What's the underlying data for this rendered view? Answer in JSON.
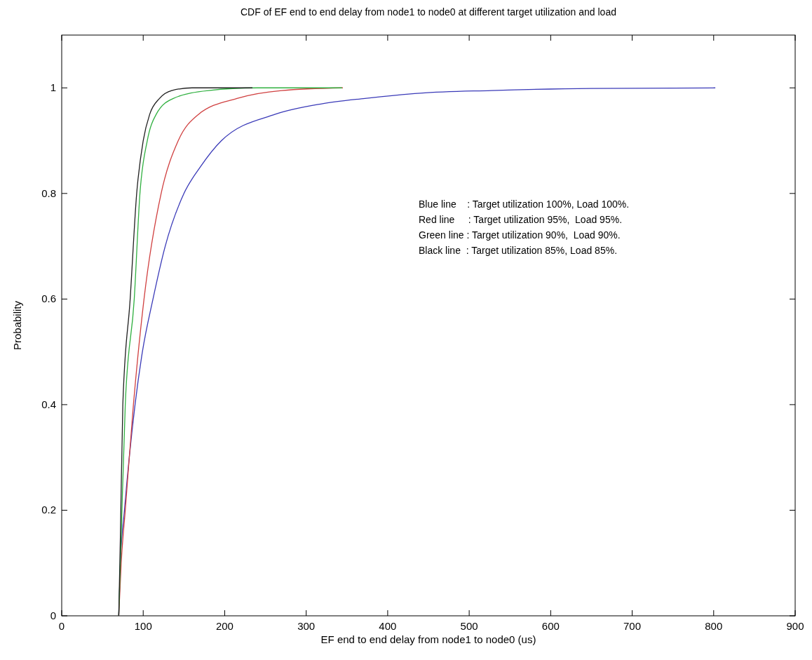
{
  "chart_data": {
    "type": "line",
    "title": "CDF of EF end to end delay from node1 to node0 at different target utilization and load",
    "xlabel": "EF end to end delay from node1 to node0 (us)",
    "ylabel": "Probability",
    "xlim": [
      0,
      900
    ],
    "xticks": [
      0,
      100,
      200,
      300,
      400,
      500,
      600,
      700,
      800,
      900
    ],
    "ylim": [
      0,
      1.1
    ],
    "yticks": [
      0,
      0.2,
      0.4,
      0.6,
      0.8,
      1
    ],
    "grid": false,
    "annotations": [
      "Blue line    : Target utilization 100%, Load 100%.",
      "Red line     : Target utilization 95%,  Load 95%.",
      "Green line : Target utilization 90%,  Load 90%.",
      "Black line  : Target utilization 85%, Load 85%."
    ],
    "series": [
      {
        "color": "#3a3ab8",
        "x": [
          70,
          72,
          77,
          90,
          99,
          112,
          127,
          150,
          170,
          196,
          262,
          320,
          372,
          440,
          527,
          650,
          802
        ],
        "values": [
          0,
          0.1,
          0.2,
          0.4,
          0.5,
          0.6,
          0.7,
          0.8,
          0.85,
          0.9,
          0.95,
          0.97,
          0.98,
          0.99,
          0.995,
          0.999,
          1
        ]
      },
      {
        "color": "#d04040",
        "x": [
          70,
          73,
          78,
          88,
          101,
          122,
          143,
          168,
          215,
          270,
          345
        ],
        "values": [
          0,
          0.1,
          0.2,
          0.4,
          0.6,
          0.8,
          0.9,
          0.95,
          0.98,
          0.995,
          1
        ]
      },
      {
        "color": "#30b040",
        "x": [
          70,
          73,
          78,
          89,
          96,
          105,
          116,
          137,
          180,
          240,
          344
        ],
        "values": [
          0,
          0.15,
          0.4,
          0.6,
          0.8,
          0.9,
          0.95,
          0.98,
          0.995,
          1,
          1
        ]
      },
      {
        "color": "#202020",
        "x": [
          70,
          72,
          75,
          84,
          92,
          100,
          108,
          120,
          135,
          160,
          234
        ],
        "values": [
          0,
          0.15,
          0.4,
          0.6,
          0.8,
          0.9,
          0.95,
          0.98,
          0.995,
          1,
          1
        ]
      }
    ]
  }
}
